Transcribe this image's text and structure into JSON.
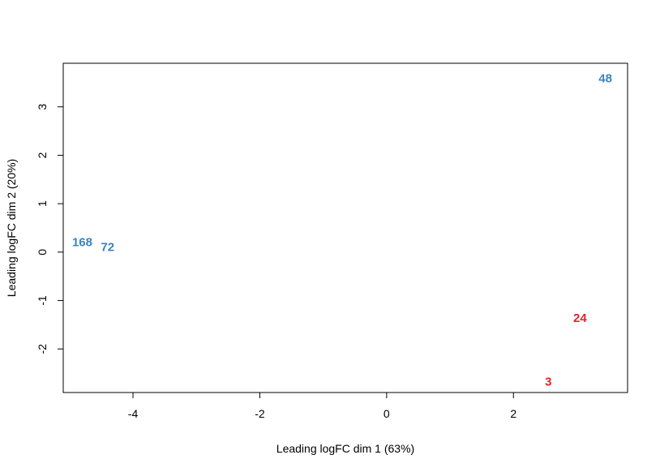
{
  "chart_data": {
    "type": "scatter",
    "title": "",
    "xlabel": "Leading logFC dim 1 (63%)",
    "ylabel": "Leading logFC dim 2 (20%)",
    "xlim": [
      -5.1,
      3.8
    ],
    "ylim": [
      -2.9,
      3.9
    ],
    "grid": false,
    "legend": "none",
    "x_ticks": [
      {
        "value": -4,
        "label": "-4"
      },
      {
        "value": -2,
        "label": "-2"
      },
      {
        "value": 0,
        "label": "0"
      },
      {
        "value": 2,
        "label": "2"
      }
    ],
    "y_ticks": [
      {
        "value": -2,
        "label": "-2"
      },
      {
        "value": -1,
        "label": "-1"
      },
      {
        "value": 0,
        "label": "0"
      },
      {
        "value": 1,
        "label": "1"
      },
      {
        "value": 2,
        "label": "2"
      },
      {
        "value": 3,
        "label": "3"
      }
    ],
    "points": [
      {
        "label": "48",
        "x": 3.45,
        "y": 3.58,
        "color": "#3A83BF"
      },
      {
        "label": "168",
        "x": -4.8,
        "y": 0.2,
        "color": "#3A83BF"
      },
      {
        "label": "72",
        "x": -4.4,
        "y": 0.1,
        "color": "#3A83BF"
      },
      {
        "label": "24",
        "x": 3.05,
        "y": -1.37,
        "color": "#E0242A"
      },
      {
        "label": "3",
        "x": 2.55,
        "y": -2.68,
        "color": "#E0242A"
      }
    ]
  }
}
